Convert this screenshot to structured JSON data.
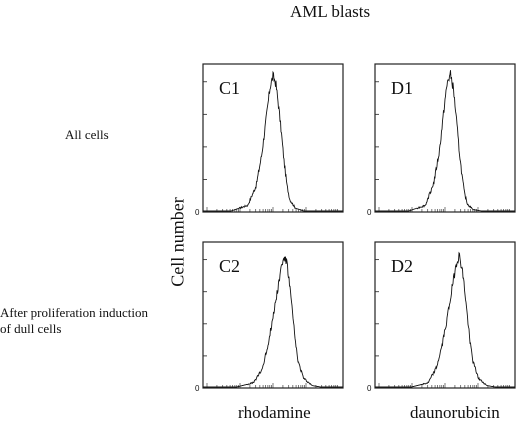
{
  "title": "AML blasts",
  "row_labels": [
    "All cells",
    "After proliferation induction",
    "of dull cells"
  ],
  "ylabel": "Cell number",
  "xlabels": [
    "rhodamine",
    "daunorubicin"
  ],
  "chart_data": [
    {
      "type": "area",
      "panel": "C1",
      "ylabel": "Cell number",
      "xlabel": "rhodamine",
      "log_x": true,
      "x": [
        0.2,
        0.32,
        0.38,
        0.42,
        0.44,
        0.46,
        0.48,
        0.5,
        0.52,
        0.54,
        0.56,
        0.58,
        0.6,
        0.62,
        0.66,
        0.72
      ],
      "y": [
        0.0,
        0.04,
        0.18,
        0.4,
        0.56,
        0.72,
        0.88,
        0.95,
        0.9,
        0.74,
        0.55,
        0.34,
        0.18,
        0.08,
        0.02,
        0.0
      ]
    },
    {
      "type": "area",
      "panel": "D1",
      "ylabel": "Cell number",
      "xlabel": "daunorubicin",
      "log_x": true,
      "x": [
        0.24,
        0.36,
        0.42,
        0.46,
        0.48,
        0.5,
        0.52,
        0.54,
        0.56,
        0.58,
        0.6,
        0.62,
        0.64,
        0.66,
        0.7,
        0.76
      ],
      "y": [
        0.0,
        0.04,
        0.2,
        0.42,
        0.6,
        0.78,
        0.92,
        0.96,
        0.86,
        0.66,
        0.44,
        0.26,
        0.12,
        0.05,
        0.01,
        0.0
      ]
    },
    {
      "type": "area",
      "panel": "C2",
      "ylabel": "Cell number",
      "xlabel": "rhodamine",
      "log_x": true,
      "x": [
        0.24,
        0.36,
        0.42,
        0.46,
        0.5,
        0.54,
        0.56,
        0.58,
        0.6,
        0.62,
        0.64,
        0.66,
        0.68,
        0.72,
        0.78,
        0.84
      ],
      "y": [
        0.0,
        0.03,
        0.12,
        0.28,
        0.5,
        0.74,
        0.86,
        0.93,
        0.88,
        0.72,
        0.52,
        0.32,
        0.18,
        0.06,
        0.01,
        0.0
      ]
    },
    {
      "type": "area",
      "panel": "D2",
      "ylabel": "Cell number",
      "xlabel": "daunorubicin",
      "log_x": true,
      "x": [
        0.26,
        0.38,
        0.44,
        0.48,
        0.52,
        0.56,
        0.58,
        0.6,
        0.62,
        0.64,
        0.66,
        0.68,
        0.7,
        0.74,
        0.8,
        0.86
      ],
      "y": [
        0.0,
        0.03,
        0.14,
        0.3,
        0.52,
        0.76,
        0.88,
        0.94,
        0.86,
        0.7,
        0.5,
        0.32,
        0.18,
        0.06,
        0.01,
        0.0
      ]
    }
  ]
}
